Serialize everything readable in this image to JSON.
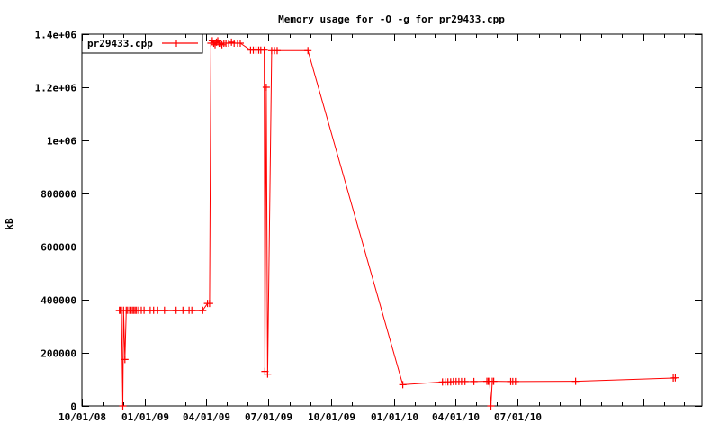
{
  "chart_data": {
    "type": "line",
    "title": "Memory usage for -O -g for pr29433.cpp",
    "ylabel": "kB",
    "xlabel": "",
    "legend": {
      "position": "top-left",
      "box": true,
      "entries": [
        "pr29433.cpp"
      ]
    },
    "series_name": "pr29433.cpp",
    "line_color": "#ff0000",
    "axis_color": "#000000",
    "background_color": "#ffffff",
    "marker": "plus",
    "grid": false,
    "x_domain": [
      "2008-10-01",
      "2011-03-28"
    ],
    "ylim": [
      0,
      1400000
    ],
    "y_ticks": [
      {
        "label": "0",
        "value": 0
      },
      {
        "label": "200000",
        "value": 200000
      },
      {
        "label": "400000",
        "value": 400000
      },
      {
        "label": "600000",
        "value": 600000
      },
      {
        "label": "800000",
        "value": 800000
      },
      {
        "label": "1e+06",
        "value": 1000000
      },
      {
        "label": "1.2e+06",
        "value": 1200000
      },
      {
        "label": "1.4e+06",
        "value": 1400000
      }
    ],
    "x_ticks": [
      {
        "label": "10/01/08",
        "date": "2008-10-01"
      },
      {
        "label": "01/01/09",
        "date": "2009-01-01"
      },
      {
        "label": "04/01/09",
        "date": "2009-04-01"
      },
      {
        "label": "07/01/09",
        "date": "2009-07-01"
      },
      {
        "label": "10/01/09",
        "date": "2009-10-01"
      },
      {
        "label": "01/01/10",
        "date": "2010-01-01"
      },
      {
        "label": "04/01/10",
        "date": "2010-04-01"
      },
      {
        "label": "07/01/10",
        "date": "2010-07-01"
      }
    ],
    "x_minor_tick_interval": "month",
    "x_major_tick_interval": "quarter",
    "points": [
      [
        "2008-11-25",
        360000
      ],
      [
        "2008-11-26",
        360000
      ],
      [
        "2008-11-28",
        360000
      ],
      [
        "2008-11-30",
        0
      ],
      [
        "2008-12-01",
        360000
      ],
      [
        "2008-12-03",
        175000
      ],
      [
        "2008-12-05",
        360000
      ],
      [
        "2008-12-07",
        360000
      ],
      [
        "2008-12-10",
        360000
      ],
      [
        "2008-12-12",
        360000
      ],
      [
        "2008-12-14",
        360000
      ],
      [
        "2008-12-16",
        360000
      ],
      [
        "2008-12-18",
        360000
      ],
      [
        "2008-12-20",
        360000
      ],
      [
        "2008-12-23",
        360000
      ],
      [
        "2008-12-27",
        360000
      ],
      [
        "2008-12-31",
        360000
      ],
      [
        "2009-01-09",
        360000
      ],
      [
        "2009-01-14",
        360000
      ],
      [
        "2009-01-20",
        360000
      ],
      [
        "2009-01-30",
        360000
      ],
      [
        "2009-02-16",
        360000
      ],
      [
        "2009-02-26",
        360000
      ],
      [
        "2009-03-07",
        360000
      ],
      [
        "2009-03-11",
        360000
      ],
      [
        "2009-03-27",
        360000
      ],
      [
        "2009-04-03",
        386000
      ],
      [
        "2009-04-06",
        386000
      ],
      [
        "2009-04-08",
        1366000
      ],
      [
        "2009-04-10",
        1375000
      ],
      [
        "2009-04-12",
        1366000
      ],
      [
        "2009-04-14",
        1360000
      ],
      [
        "2009-04-16",
        1370000
      ],
      [
        "2009-04-18",
        1375000
      ],
      [
        "2009-04-20",
        1366000
      ],
      [
        "2009-04-22",
        1366000
      ],
      [
        "2009-04-24",
        1360000
      ],
      [
        "2009-04-27",
        1366000
      ],
      [
        "2009-04-30",
        1366000
      ],
      [
        "2009-05-04",
        1366000
      ],
      [
        "2009-05-08",
        1370000
      ],
      [
        "2009-05-12",
        1366000
      ],
      [
        "2009-05-17",
        1366000
      ],
      [
        "2009-05-21",
        1366000
      ],
      [
        "2009-06-05",
        1340000
      ],
      [
        "2009-06-09",
        1340000
      ],
      [
        "2009-06-13",
        1340000
      ],
      [
        "2009-06-17",
        1340000
      ],
      [
        "2009-06-20",
        1340000
      ],
      [
        "2009-06-25",
        1340000
      ],
      [
        "2009-06-26",
        130000
      ],
      [
        "2009-06-28",
        1200000
      ],
      [
        "2009-06-30",
        120000
      ],
      [
        "2009-07-06",
        1338000
      ],
      [
        "2009-07-10",
        1338000
      ],
      [
        "2009-07-14",
        1338000
      ],
      [
        "2009-08-28",
        1338000
      ],
      [
        "2010-01-14",
        80000
      ],
      [
        "2010-03-13",
        90000
      ],
      [
        "2010-03-17",
        91000
      ],
      [
        "2010-03-21",
        91000
      ],
      [
        "2010-03-25",
        91000
      ],
      [
        "2010-03-29",
        92000
      ],
      [
        "2010-04-02",
        92000
      ],
      [
        "2010-04-06",
        92000
      ],
      [
        "2010-04-10",
        92000
      ],
      [
        "2010-04-15",
        92000
      ],
      [
        "2010-04-28",
        92000
      ],
      [
        "2010-05-17",
        93000
      ],
      [
        "2010-05-19",
        93000
      ],
      [
        "2010-05-21",
        93000
      ],
      [
        "2010-05-23",
        0
      ],
      [
        "2010-05-25",
        93000
      ],
      [
        "2010-05-27",
        93000
      ],
      [
        "2010-06-21",
        92000
      ],
      [
        "2010-06-24",
        92000
      ],
      [
        "2010-06-28",
        92000
      ],
      [
        "2010-09-24",
        93000
      ],
      [
        "2011-02-14",
        105000
      ],
      [
        "2011-02-17",
        106000
      ]
    ]
  }
}
